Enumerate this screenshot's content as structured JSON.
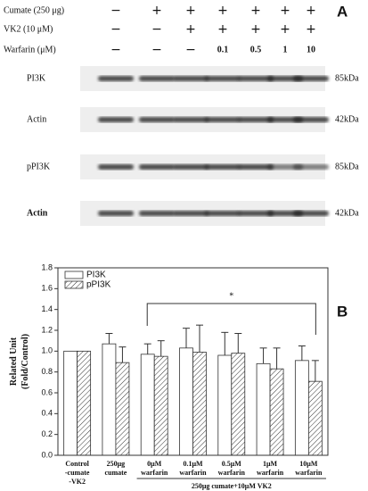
{
  "blot": {
    "panel_label": "A",
    "conditions": [
      {
        "label": "Cumate (250 μg)",
        "marks": [
          "−",
          "+",
          "+",
          "+",
          "+",
          "+",
          "+"
        ]
      },
      {
        "label": "VK2 (10 μM)",
        "marks": [
          "−",
          "−",
          "+",
          "+",
          "+",
          "+",
          "+"
        ]
      },
      {
        "label": "Warfarin (μM)",
        "marks": [
          "−",
          "−",
          "−",
          "0.1",
          "0.5",
          "1",
          "10"
        ]
      }
    ],
    "bands": [
      {
        "label": "PI3K",
        "size": "85kDa"
      },
      {
        "label": "Actin",
        "size": "42kDa"
      },
      {
        "label": "pPI3K",
        "size": "85kDa"
      },
      {
        "label": "Actin",
        "size": "42kDa"
      }
    ]
  },
  "chart_data": {
    "type": "bar",
    "panel_label": "B",
    "y_label": [
      "Related Unit",
      "(Fold/Control)"
    ],
    "categories": [
      "Control\n-cumate\n-VK2",
      "250μg\ncumate",
      "0μM\nwarfarin",
      "0.1μM\nwarfarin",
      "0.5μM\nwarfarin",
      "1μM\nwarfarin",
      "10μM\nwarfarin"
    ],
    "group_label": "250μg cumate+10μM VK2",
    "significance": "*",
    "series": [
      {
        "name": "PI3K",
        "color": "#ffffff",
        "values": [
          1.0,
          1.07,
          0.97,
          1.03,
          0.96,
          0.88,
          0.91
        ],
        "errors": [
          0,
          0.1,
          0.1,
          0.19,
          0.22,
          0.15,
          0.14
        ]
      },
      {
        "name": "pPI3K",
        "color": "hatch",
        "values": [
          1.0,
          0.89,
          0.95,
          0.99,
          0.98,
          0.83,
          0.71
        ],
        "errors": [
          0,
          0.15,
          0.15,
          0.26,
          0.19,
          0.2,
          0.2
        ]
      }
    ],
    "ylim": [
      0,
      1.8
    ],
    "yticks": [
      {
        "value": 0,
        "label": "0.0"
      },
      0.2,
      0.4,
      0.6,
      0.8,
      {
        "value": 1,
        "label": "1.0"
      },
      1.2,
      1.4,
      1.6,
      1.8
    ]
  }
}
